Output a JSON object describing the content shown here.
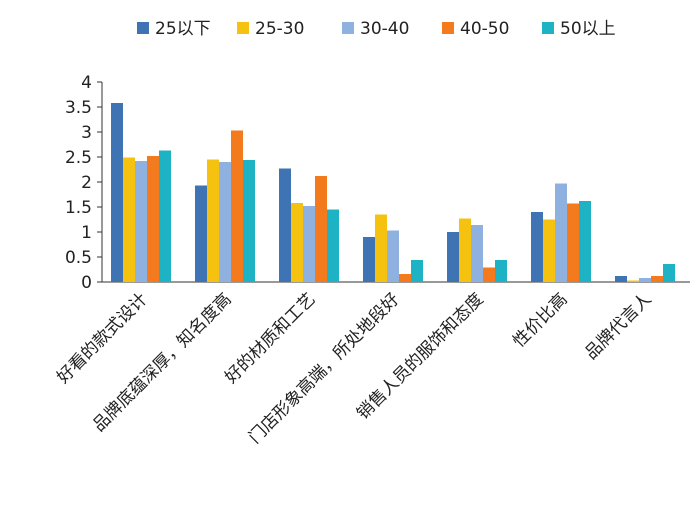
{
  "chart_data": {
    "type": "bar",
    "title": "",
    "xlabel": "",
    "ylabel": "",
    "ylim": [
      0,
      4
    ],
    "yticks": [
      "0",
      "0.5",
      "1",
      "1.5",
      "2",
      "2.5",
      "3",
      "3.5",
      "4"
    ],
    "grid": false,
    "legend_position": "top",
    "categories": [
      "好看的款式设计",
      "品牌底蕴深厚，知名度高",
      "好的材质和工艺",
      "门店形象高端，所处地段好",
      "销售人员的服饰和态度",
      "性价比高",
      "品牌代言人"
    ],
    "series": [
      {
        "name": "25以下",
        "color": "#3e74b4",
        "values": [
          3.58,
          1.93,
          2.27,
          0.9,
          1.0,
          1.4,
          0.12
        ]
      },
      {
        "name": "25-30",
        "color": "#f6c210",
        "values": [
          2.49,
          2.45,
          1.58,
          1.35,
          1.27,
          1.25,
          0.03
        ]
      },
      {
        "name": "30-40",
        "color": "#8fb1e0",
        "values": [
          2.42,
          2.4,
          1.52,
          1.03,
          1.14,
          1.97,
          0.08
        ]
      },
      {
        "name": "40-50",
        "color": "#f47a1e",
        "values": [
          2.52,
          3.03,
          2.12,
          0.16,
          0.29,
          1.57,
          0.12
        ]
      },
      {
        "name": "50以上",
        "color": "#1db3c4",
        "values": [
          2.63,
          2.44,
          1.45,
          0.44,
          0.44,
          1.62,
          0.36
        ]
      }
    ]
  }
}
